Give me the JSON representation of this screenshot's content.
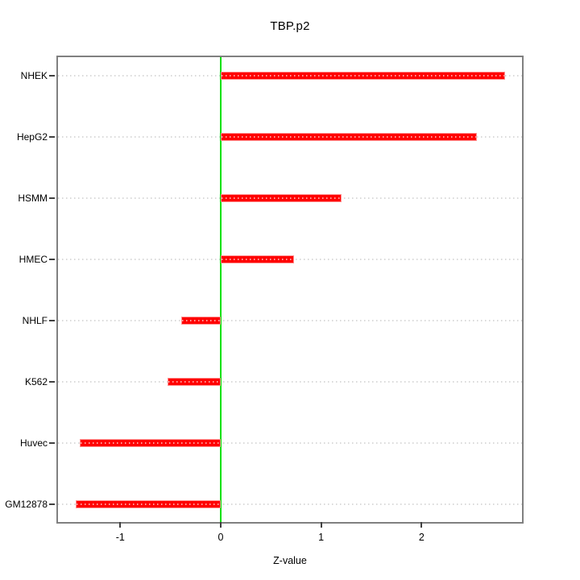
{
  "chart_data": {
    "type": "bar",
    "orientation": "horizontal",
    "title": "TBP.p2",
    "xlabel": "Z-value",
    "categories": [
      "NHEK",
      "HepG2",
      "HSMM",
      "HMEC",
      "NHLF",
      "K562",
      "Huvec",
      "GM12878"
    ],
    "values": [
      2.83,
      2.55,
      1.2,
      0.73,
      -0.39,
      -0.53,
      -1.4,
      -1.44
    ],
    "xlim": [
      -1.62,
      3.0
    ],
    "xticks": [
      -1,
      0,
      1,
      2
    ],
    "xtick_labels": [
      "-1",
      "0",
      "1",
      "2"
    ],
    "grid": true,
    "legend": "none",
    "bar_color": "#ff0000",
    "bar_edge_color": "#ff9090",
    "bar_dot_color": "#ff9f9f",
    "zero_line_color": "#00e100",
    "gridline_color": "#d9d9d9",
    "frame_color": "#808080",
    "tick_color": "#404040",
    "text_color": "#000000"
  }
}
